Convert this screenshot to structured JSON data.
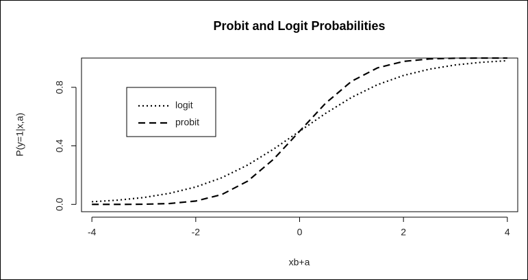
{
  "chart_data": {
    "type": "line",
    "title": "Probit and Logit Probabilities",
    "xlabel": "xb+a",
    "ylabel": "P(y=1|x,a)",
    "x": [
      -4,
      -3.5,
      -3,
      -2.5,
      -2,
      -1.5,
      -1,
      -0.5,
      0,
      0.5,
      1,
      1.5,
      2,
      2.5,
      3,
      3.5,
      4
    ],
    "series": [
      {
        "name": "logit",
        "color": "#000000",
        "linestyle": "dotted",
        "values": [
          0.018,
          0.029,
          0.047,
          0.076,
          0.119,
          0.182,
          0.269,
          0.378,
          0.5,
          0.622,
          0.731,
          0.818,
          0.881,
          0.924,
          0.953,
          0.971,
          0.982
        ]
      },
      {
        "name": "probit",
        "color": "#000000",
        "linestyle": "dashed",
        "values": [
          0.0,
          0.0,
          0.001,
          0.006,
          0.023,
          0.067,
          0.159,
          0.309,
          0.5,
          0.691,
          0.841,
          0.933,
          0.977,
          0.994,
          0.999,
          1.0,
          1.0
        ]
      }
    ],
    "xlim": [
      -4.2,
      4.2
    ],
    "ylim": [
      -0.05,
      1.0
    ],
    "xticks": [
      -4,
      -2,
      0,
      2,
      4
    ],
    "yticks": [
      {
        "value": 0,
        "label": "0.0"
      },
      0.4,
      0.8
    ]
  }
}
